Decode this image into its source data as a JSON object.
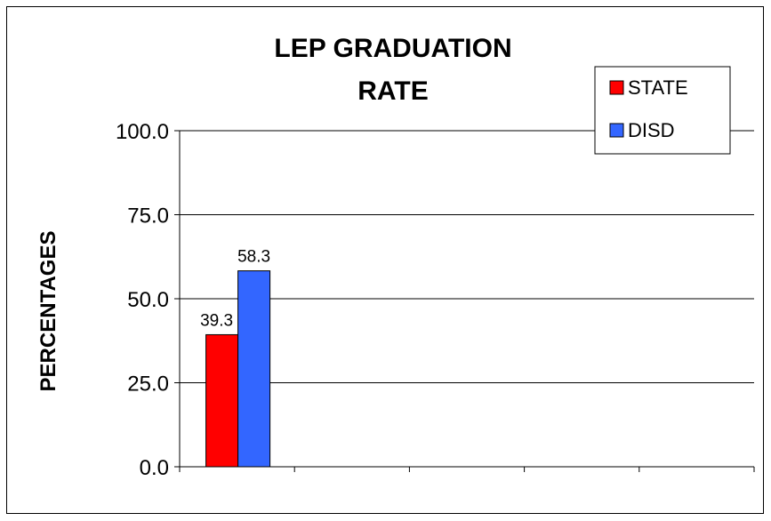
{
  "chart_data": {
    "type": "bar",
    "title_lines": [
      "LEP GRADUATION",
      "RATE"
    ],
    "ylabel": "PERCENTAGES",
    "xlabel": "",
    "ylim": [
      0,
      100
    ],
    "yticks": [
      "0.0",
      "25.0",
      "50.0",
      "75.0",
      "100.0"
    ],
    "ytick_values": [
      0,
      25,
      50,
      75,
      100
    ],
    "grid": true,
    "category_slots": 5,
    "categories": [
      ""
    ],
    "series": [
      {
        "name": "STATE",
        "color": "#ff0000",
        "values": [
          39.3
        ],
        "labels": [
          "39.3"
        ]
      },
      {
        "name": "DISD",
        "color": "#3366ff",
        "values": [
          58.3
        ],
        "labels": [
          "58.3"
        ]
      }
    ],
    "legend_position": "top-right"
  }
}
